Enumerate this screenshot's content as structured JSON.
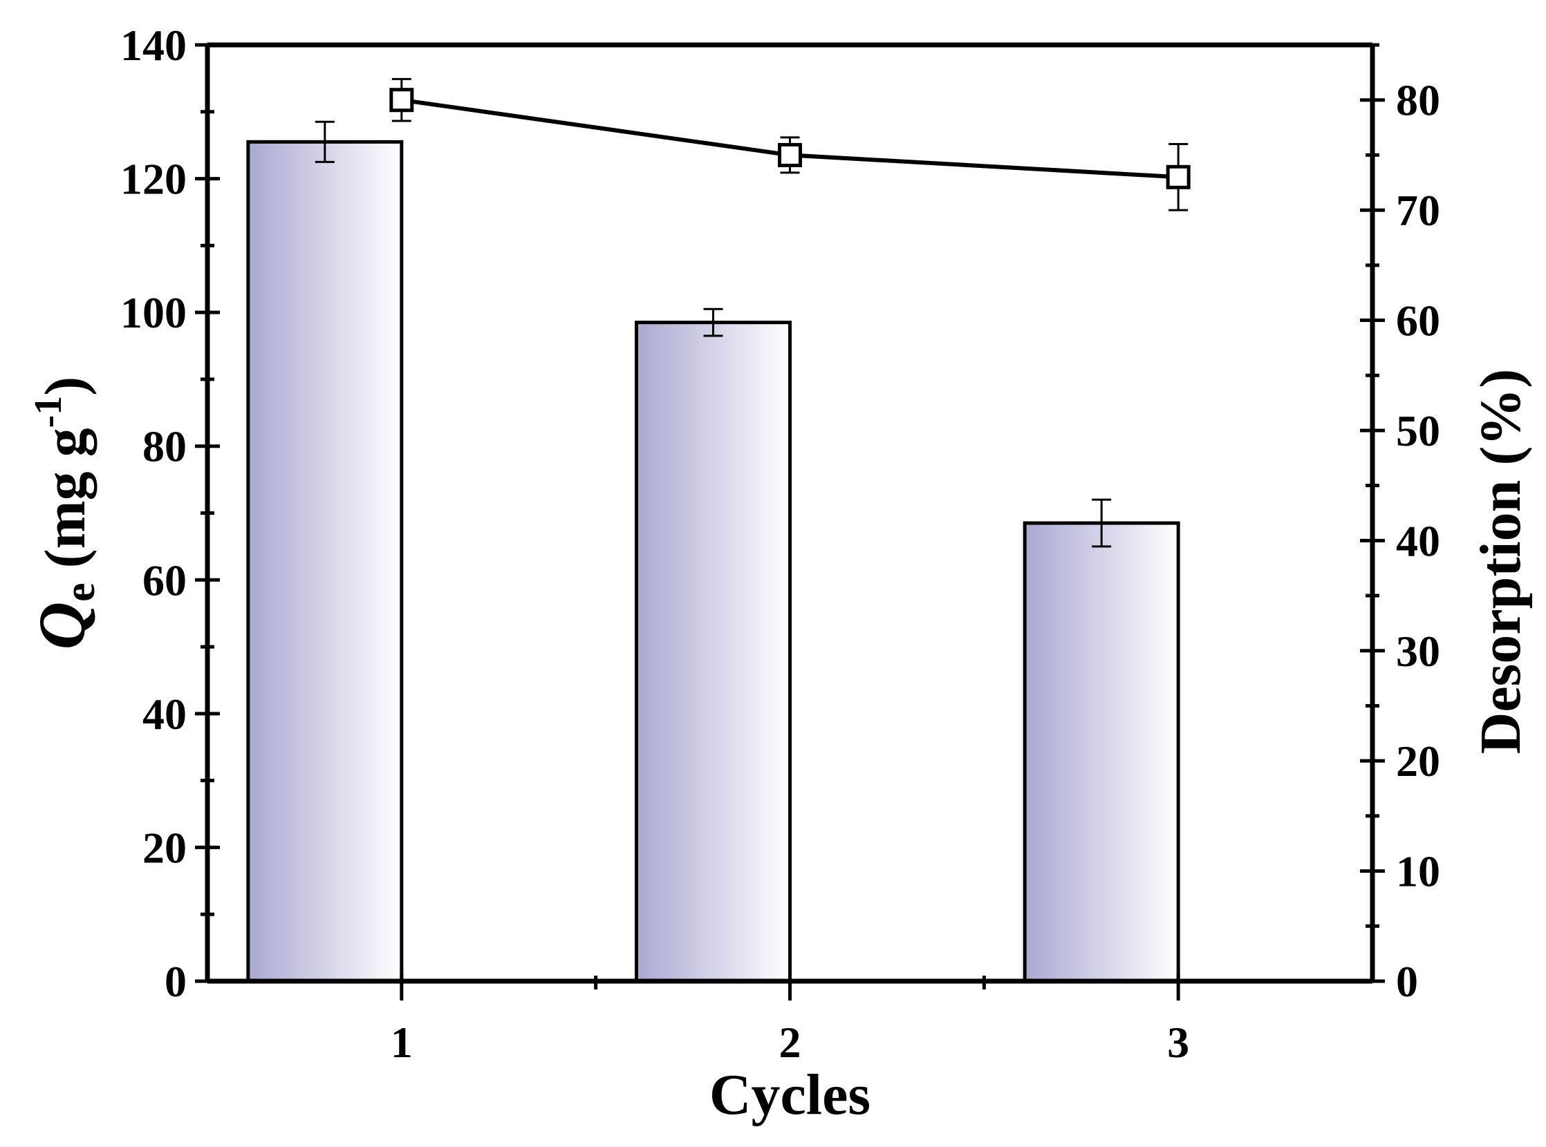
{
  "chart_data": {
    "type": "bar",
    "title": "",
    "xlabel": "Cycles",
    "categories": [
      "1",
      "2",
      "3"
    ],
    "left_axis": {
      "label_symbol": "Q",
      "label_subscript": "e",
      "label_unit_prefix": " (mg g",
      "label_superscript": "-1",
      "label_unit_suffix": ")",
      "ylim": [
        0,
        140
      ],
      "ticks": [
        "0",
        "20",
        "40",
        "60",
        "80",
        "100",
        "120",
        "140"
      ]
    },
    "right_axis": {
      "label": "Desorption (%)",
      "ylim": [
        0,
        85
      ],
      "ticks": [
        "0",
        "10",
        "20",
        "30",
        "40",
        "50",
        "60",
        "70",
        "80"
      ]
    },
    "series": [
      {
        "kind": "bar",
        "axis": "left",
        "values": [
          125.5,
          98.5,
          68.5
        ],
        "errors": [
          3.0,
          2.0,
          3.5
        ],
        "gradient": [
          "#a9a9d2",
          "#ffffff"
        ]
      },
      {
        "kind": "line",
        "axis": "right",
        "marker": "open-square",
        "values": [
          80,
          75,
          73
        ],
        "errors": [
          1.9,
          1.6,
          3.0
        ]
      }
    ],
    "grid": false,
    "legend": "none"
  }
}
